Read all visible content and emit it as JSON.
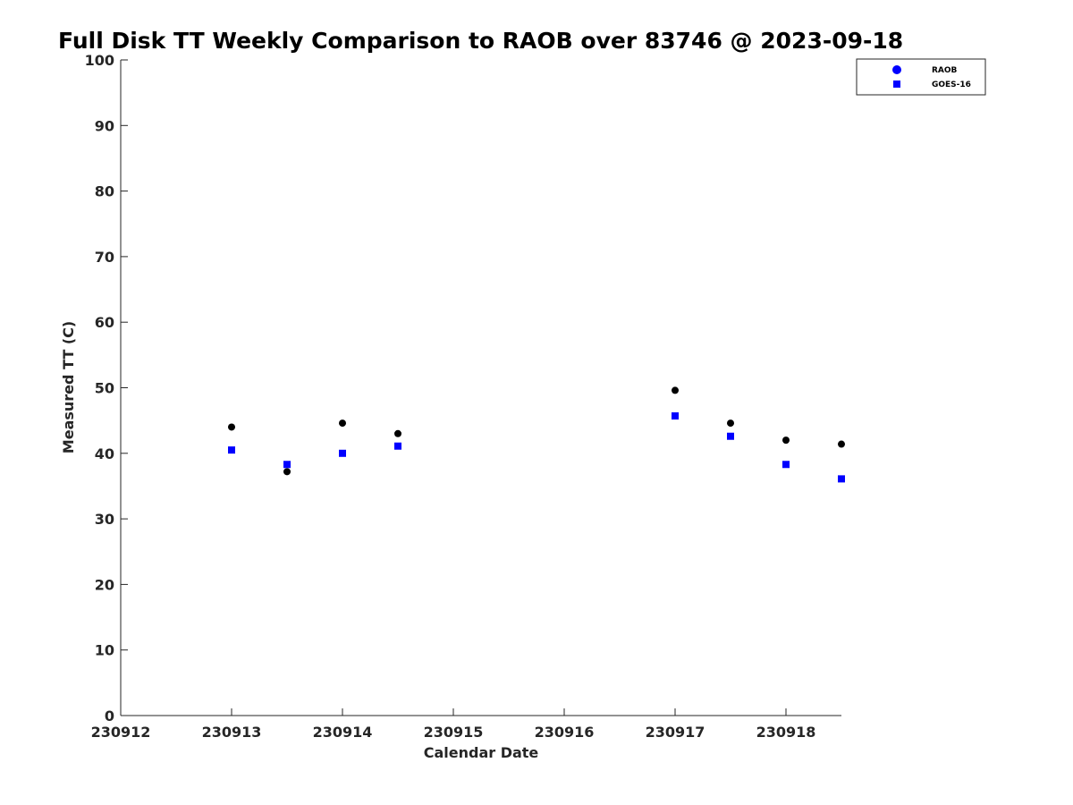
{
  "chart_data": {
    "type": "scatter",
    "title": "Full Disk TT Weekly Comparison to RAOB over 83746 @ 2023-09-18",
    "xlabel": "Calendar Date",
    "ylabel": "Measured TT (C)",
    "xlim": [
      230912,
      230918.5
    ],
    "ylim": [
      0,
      100
    ],
    "x_ticks": [
      "230912",
      "230913",
      "230914",
      "230915",
      "230916",
      "230917",
      "230918"
    ],
    "y_ticks": [
      "0",
      "10",
      "20",
      "30",
      "40",
      "50",
      "60",
      "70",
      "80",
      "90",
      "100"
    ],
    "grid": false,
    "legend_position": "top-right",
    "series": [
      {
        "name": "RAOB",
        "marker": "circle",
        "color": "#000000",
        "legend_color": "#0000ff",
        "x": [
          230913,
          230913.5,
          230914,
          230914.5,
          230917,
          230917.5,
          230918,
          230918.5
        ],
        "y": [
          44.0,
          37.2,
          44.6,
          43.0,
          49.6,
          44.6,
          42.0,
          41.4
        ]
      },
      {
        "name": "GOES-16",
        "marker": "square",
        "color": "#0000ff",
        "legend_color": "#0000ff",
        "x": [
          230913,
          230913.5,
          230914,
          230914.5,
          230917,
          230917.5,
          230918,
          230918.5
        ],
        "y": [
          40.5,
          38.3,
          40.0,
          41.1,
          45.7,
          42.6,
          38.3,
          36.1
        ]
      }
    ]
  }
}
